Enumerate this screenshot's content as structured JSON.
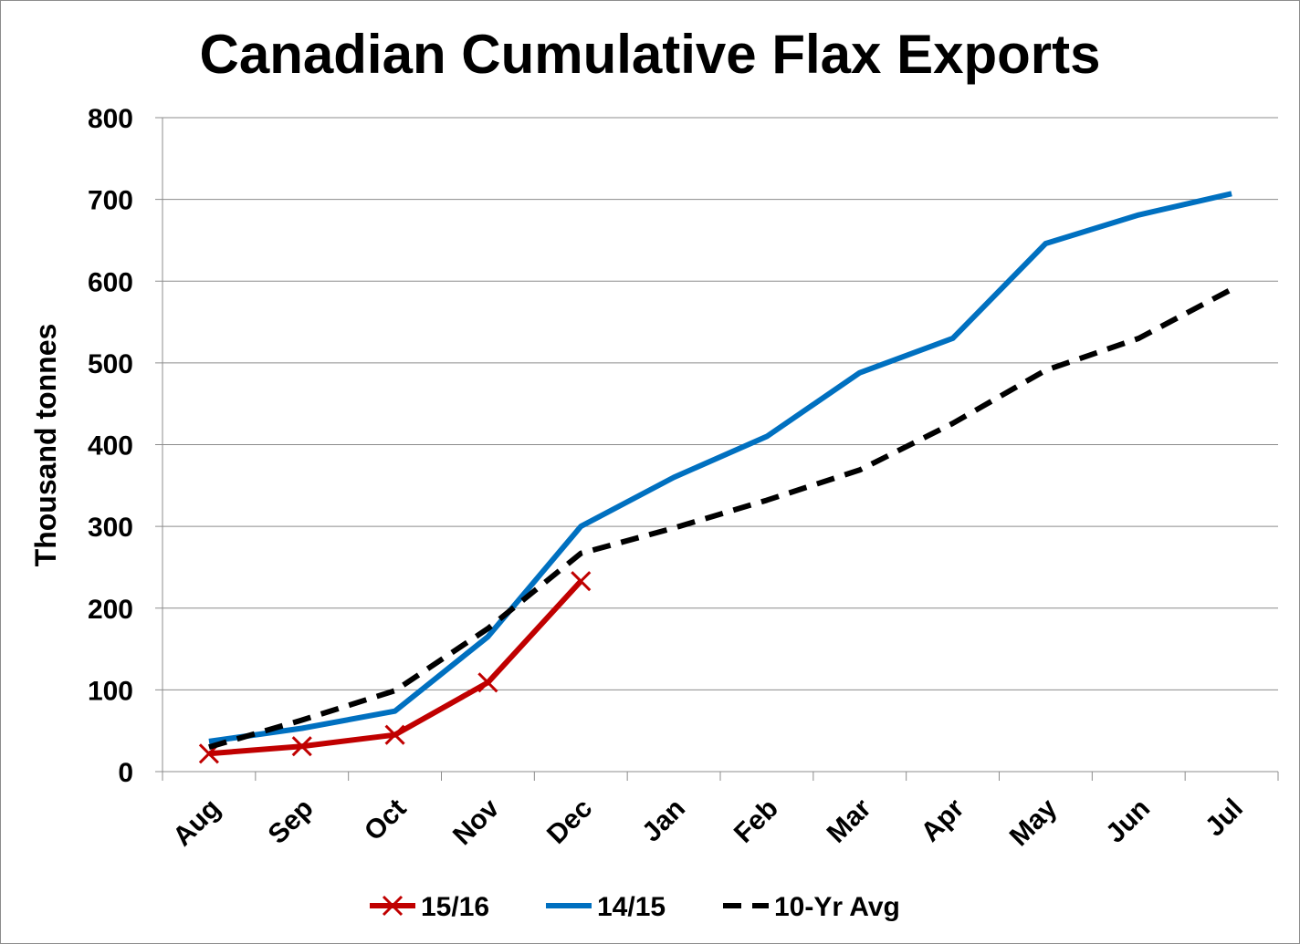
{
  "chart_data": {
    "type": "line",
    "title": "Canadian Cumulative Flax Exports",
    "xlabel": "",
    "ylabel": "Thousand tonnes",
    "categories": [
      "Aug",
      "Sep",
      "Oct",
      "Nov",
      "Dec",
      "Jan",
      "Feb",
      "Mar",
      "Apr",
      "May",
      "Jun",
      "Jul"
    ],
    "ylim": [
      0,
      800
    ],
    "yticks": [
      "0",
      "100",
      "200",
      "300",
      "400",
      "500",
      "600",
      "700",
      "800"
    ],
    "grid": true,
    "legend_position": "bottom",
    "series": [
      {
        "name": "15/16",
        "color": "#c00000",
        "style": "solid-x-marker",
        "values": [
          22,
          31,
          45,
          109,
          233,
          null,
          null,
          null,
          null,
          null,
          null,
          null
        ]
      },
      {
        "name": "14/15",
        "color": "#0070c0",
        "style": "solid",
        "values": [
          37,
          53,
          74,
          165,
          300,
          360,
          410,
          488,
          530,
          646,
          681,
          707
        ]
      },
      {
        "name": "10-Yr Avg",
        "color": "#000000",
        "style": "dashed",
        "values": [
          30,
          63,
          99,
          175,
          267,
          298,
          332,
          369,
          426,
          491,
          530,
          590
        ]
      }
    ]
  }
}
